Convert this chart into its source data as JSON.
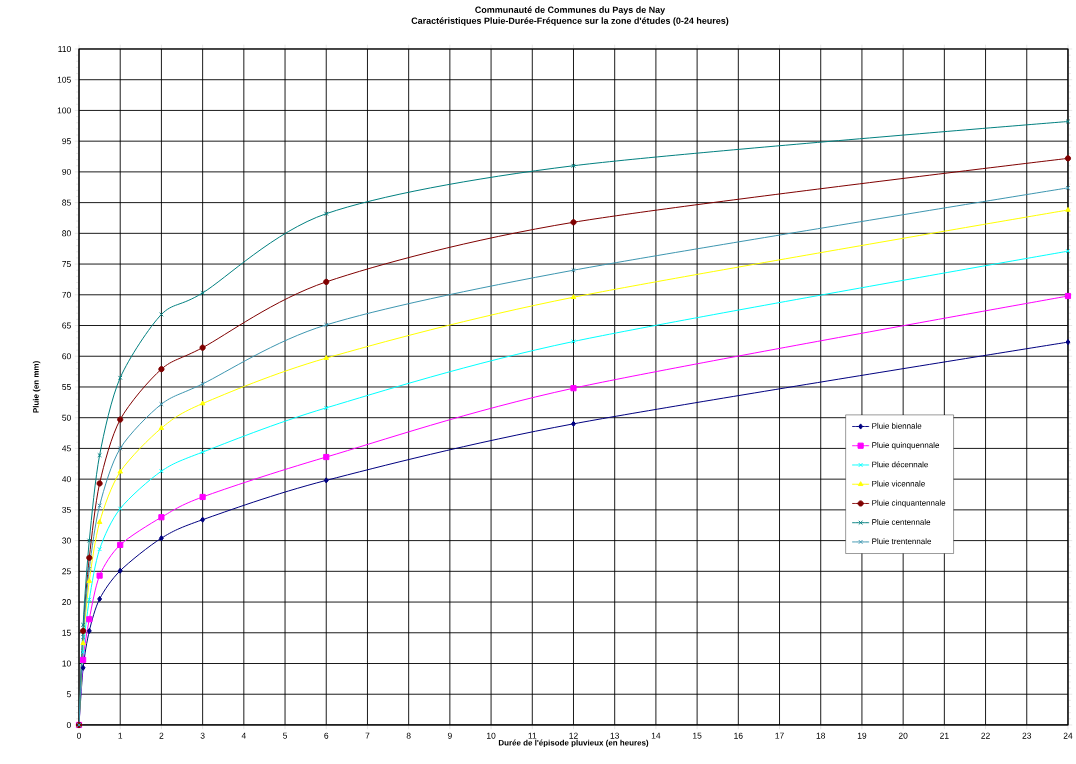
{
  "chart_data": {
    "type": "line",
    "title": "Communauté de Communes du Pays de Nay",
    "subtitle": "Caractéristiques Pluie-Durée-Fréquence sur la zone d'études (0-24 heures)",
    "xlabel": "Durée de l'épisode pluvieux (en heures)",
    "ylabel": "Pluie (en mm)",
    "x": [
      0,
      0.1,
      0.25,
      0.5,
      1,
      2,
      3,
      6,
      12,
      24
    ],
    "xlim": [
      0,
      24
    ],
    "xticks": [
      0,
      1,
      2,
      3,
      4,
      5,
      6,
      7,
      8,
      9,
      10,
      11,
      12,
      13,
      14,
      15,
      16,
      17,
      18,
      19,
      20,
      21,
      22,
      23,
      24
    ],
    "ylim": [
      0,
      110
    ],
    "yticks": [
      0,
      5,
      10,
      15,
      20,
      25,
      30,
      35,
      40,
      45,
      50,
      55,
      60,
      65,
      70,
      75,
      80,
      85,
      90,
      95,
      100,
      105,
      110
    ],
    "grid": true,
    "legend": "right",
    "series": [
      {
        "name": "Pluie biennale",
        "color": "#000080",
        "marker": "diamond",
        "values": [
          0,
          9.3,
          15.3,
          20.5,
          25.1,
          30.4,
          33.4,
          39.8,
          49.0,
          62.3
        ]
      },
      {
        "name": "Pluie quinquennale",
        "color": "#ff00ff",
        "marker": "square",
        "values": [
          0,
          10.6,
          17.2,
          24.3,
          29.3,
          33.8,
          37.1,
          43.6,
          54.8,
          69.8
        ]
      },
      {
        "name": "Pluie décennale",
        "color": "#00ffff",
        "marker": "cross",
        "values": [
          0,
          11.9,
          20.4,
          28.6,
          35.2,
          41.3,
          44.4,
          51.6,
          62.4,
          77.1
        ]
      },
      {
        "name": "Pluie vicennale",
        "color": "#ffff00",
        "marker": "triangle",
        "values": [
          0,
          13.3,
          23.4,
          33.0,
          41.2,
          48.3,
          52.3,
          59.7,
          69.6,
          83.8
        ]
      },
      {
        "name": "Pluie cinquantennale",
        "color": "#800000",
        "marker": "circle",
        "values": [
          0,
          15.3,
          27.2,
          39.3,
          49.7,
          57.9,
          61.4,
          72.1,
          81.8,
          92.2
        ]
      },
      {
        "name": "Pluie centennale",
        "color": "#008080",
        "marker": "cross",
        "values": [
          0,
          16.3,
          30.0,
          43.9,
          56.5,
          66.8,
          70.3,
          83.2,
          91.0,
          98.2
        ]
      },
      {
        "name": "Pluie trentennale",
        "color": "#3d96b0",
        "marker": "cross",
        "values": [
          0,
          14.3,
          25.4,
          35.7,
          45.0,
          52.2,
          55.5,
          65.1,
          74.0,
          87.4
        ]
      }
    ]
  }
}
